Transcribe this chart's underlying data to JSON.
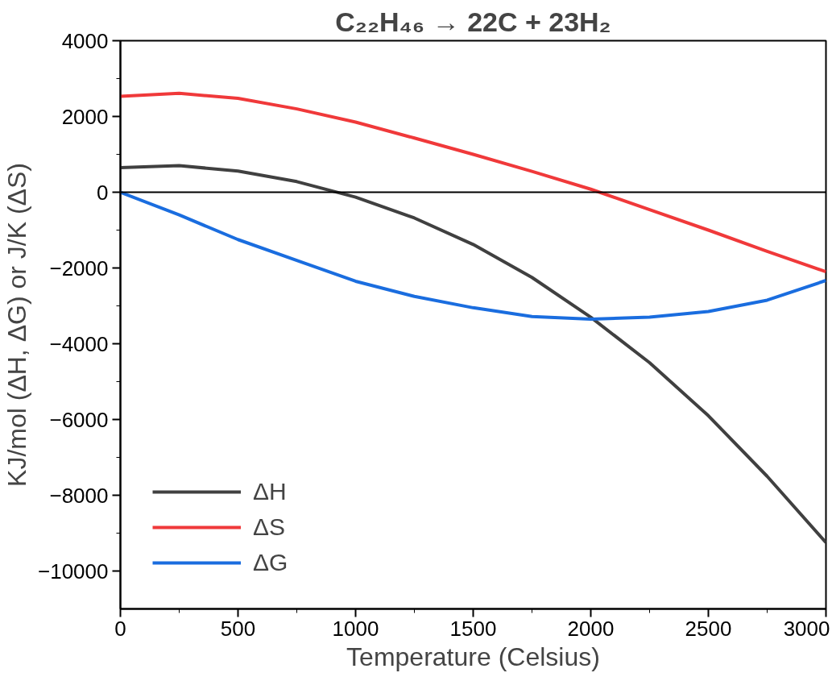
{
  "chart_data": {
    "type": "line",
    "title": "C₂₂H₄₆ → 22C + 23H₂",
    "xlabel": "Temperature (Celsius)",
    "ylabel": "KJ/mol (ΔH, ΔG) or J/K (ΔS)",
    "x": [
      0,
      250,
      500,
      750,
      1000,
      1250,
      1500,
      1750,
      2000,
      2250,
      2500,
      2750,
      3000
    ],
    "series": [
      {
        "name": "ΔH",
        "color": "#404040",
        "values": [
          650,
          700,
          560,
          280,
          -130,
          -680,
          -1380,
          -2250,
          -3300,
          -4500,
          -5900,
          -7500,
          -9250
        ]
      },
      {
        "name": "ΔS",
        "color": "#f0393a",
        "values": [
          2530,
          2610,
          2480,
          2200,
          1850,
          1430,
          1000,
          550,
          80,
          -460,
          -1000,
          -1560,
          -2100
        ]
      },
      {
        "name": "ΔG",
        "color": "#1a6ddf",
        "values": [
          0,
          -600,
          -1250,
          -1800,
          -2350,
          -2750,
          -3050,
          -3280,
          -3350,
          -3300,
          -3150,
          -2850,
          -2330
        ]
      }
    ],
    "xlim": [
      0,
      3000
    ],
    "xticks": [
      0,
      500,
      1000,
      1500,
      2000,
      2500,
      3000
    ],
    "ylim": [
      -11000,
      4000
    ],
    "yticks": [
      {
        "value": -10000,
        "label": "−10000"
      },
      {
        "value": -8000,
        "label": "−8000"
      },
      {
        "value": -6000,
        "label": "−6000"
      },
      {
        "value": -4000,
        "label": "−4000"
      },
      {
        "value": -2000,
        "label": "−2000"
      },
      0,
      2000,
      4000
    ],
    "ref_lines": [
      {
        "axis": "y",
        "value": 0,
        "color": "#000000"
      }
    ],
    "grid": false,
    "legend": "bottom left",
    "line_style": "solid",
    "marker": "none"
  }
}
